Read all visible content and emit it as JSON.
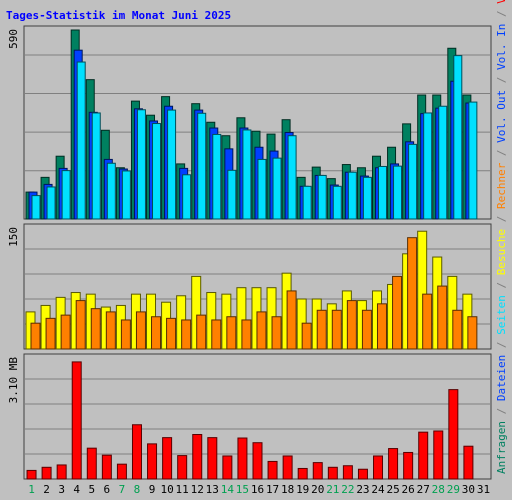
{
  "chart_data": {
    "type": "bar",
    "title": "Tages-Statistik im Monat Juni 2025",
    "categories": [
      "1",
      "2",
      "3",
      "4",
      "5",
      "6",
      "7",
      "8",
      "9",
      "10",
      "11",
      "12",
      "13",
      "14",
      "15",
      "16",
      "17",
      "18",
      "19",
      "20",
      "21",
      "22",
      "23",
      "24",
      "25",
      "26",
      "27",
      "28",
      "29",
      "30",
      "31"
    ],
    "weekend_days": [
      "1",
      "7",
      "8",
      "14",
      "15",
      "21",
      "22",
      "28",
      "29"
    ],
    "panels": [
      {
        "id": "top",
        "max_label": "590",
        "ylim": [
          0,
          590
        ],
        "series": [
          {
            "name": "Anfragen",
            "color": "#008060",
            "values": [
              84,
              130,
              196,
              590,
              435,
              277,
              160,
              368,
              324,
              382,
              172,
              360,
              302,
              260,
              316,
              274,
              265,
              310,
              130,
              162,
              126,
              170,
              160,
              196,
              224,
              297,
              387,
              387,
              533,
              387,
              null
            ]
          },
          {
            "name": "Dateien",
            "color": "#0040ff",
            "values": [
              84,
              108,
              158,
              527,
              333,
              186,
              156,
              344,
              306,
              352,
              158,
              340,
              284,
              219,
              284,
              224,
              212,
              270,
              102,
              136,
              106,
              146,
              134,
              160,
              172,
              241,
              329,
              346,
              430,
              362,
              null
            ]
          },
          {
            "name": "Seiten",
            "color": "#00e0ff",
            "values": [
              73,
              100,
              151,
              490,
              331,
              174,
              150,
              341,
              298,
              340,
              138,
              330,
              264,
              152,
              278,
              186,
              190,
              260,
              102,
              136,
              102,
              146,
              130,
              164,
              165,
              233,
              331,
              352,
              510,
              365,
              null
            ]
          }
        ]
      },
      {
        "id": "middle",
        "max_label": "150",
        "ylim": [
          0,
          150
        ],
        "series": [
          {
            "name": "Besuche",
            "color": "#ffff00",
            "values": [
              46,
              54,
              64,
              70,
              68,
              52,
              54,
              68,
              68,
              58,
              66,
              90,
              70,
              68,
              76,
              76,
              76,
              94,
              62,
              62,
              56,
              72,
              60,
              72,
              80,
              118,
              146,
              114,
              90,
              68,
              null
            ]
          },
          {
            "name": "Rechner",
            "color": "#ff8000",
            "values": [
              32,
              38,
              42,
              60,
              50,
              46,
              36,
              46,
              40,
              38,
              36,
              42,
              36,
              40,
              36,
              46,
              40,
              72,
              32,
              48,
              48,
              60,
              48,
              56,
              90,
              138,
              68,
              78,
              48,
              40,
              null
            ]
          }
        ]
      },
      {
        "id": "bottom",
        "max_label": "3.10 MB",
        "ylim": [
          0,
          3.1
        ],
        "series": [
          {
            "name": "Vol. In",
            "color": "#0040ff",
            "values": [
              0,
              0,
              0,
              0,
              0,
              0,
              0,
              0,
              0,
              0,
              0,
              0,
              0,
              0,
              0,
              0,
              0,
              0,
              0,
              0,
              0,
              0,
              0,
              0,
              0,
              0,
              0,
              0,
              0,
              0,
              null
            ]
          },
          {
            "name": "Vol. Out",
            "color": "#ff0000",
            "values": [
              0.22,
              0.3,
              0.36,
              3.0,
              0.79,
              0.61,
              0.38,
              1.39,
              0.9,
              1.06,
              0.6,
              1.14,
              1.06,
              0.59,
              1.05,
              0.93,
              0.45,
              0.59,
              0.27,
              0.42,
              0.3,
              0.34,
              0.25,
              0.59,
              0.78,
              0.68,
              1.2,
              1.23,
              2.29,
              0.84,
              null
            ]
          }
        ]
      }
    ],
    "legend": {
      "position": "right-vertical",
      "entries": [
        {
          "text": "Anfragen",
          "color": "#008060"
        },
        {
          "text": " / ",
          "color": "#808080"
        },
        {
          "text": "Dateien",
          "color": "#0040ff"
        },
        {
          "text": " / ",
          "color": "#808080"
        },
        {
          "text": "Seiten",
          "color": "#00e0ff"
        },
        {
          "text": " / ",
          "color": "#808080"
        },
        {
          "text": "Besuche",
          "color": "#ffff00"
        },
        {
          "text": " / ",
          "color": "#808080"
        },
        {
          "text": "Rechner",
          "color": "#ff8000"
        },
        {
          "text": " / ",
          "color": "#808080"
        },
        {
          "text": "Vol. Out",
          "color": "#0040ff"
        },
        {
          "text": " / ",
          "color": "#808080"
        },
        {
          "text": "Vol. In",
          "color": "#0040ff"
        },
        {
          "text": " / ",
          "color": "#808080"
        },
        {
          "text": "Volumen",
          "color": "#ff0000"
        }
      ]
    },
    "grid": true,
    "colors": {
      "background": "#c0c0c0",
      "title": "#0000ff",
      "weekday_label": "#000000",
      "weekend_label": "#00a050",
      "grid": "#808080"
    }
  }
}
